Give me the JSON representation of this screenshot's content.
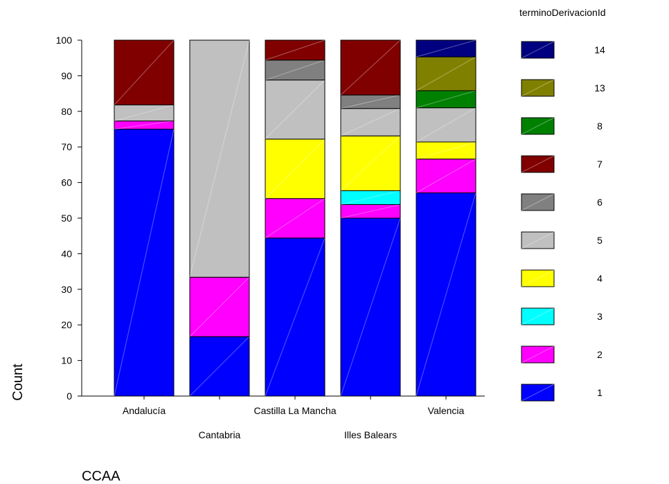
{
  "chart_data": {
    "type": "bar",
    "stacked": true,
    "title": "",
    "xlabel": "CCAA",
    "ylabel": "Count",
    "ylim": [
      0,
      100
    ],
    "yticks": [
      0,
      10,
      20,
      30,
      40,
      50,
      60,
      70,
      80,
      90,
      100
    ],
    "grid": false,
    "legend_title": "terminoDerivacionId",
    "legend_position": "right",
    "categories": [
      "Andalucía",
      "Cantabria",
      "Castilla La Mancha",
      "Illes Balears",
      "Valencia"
    ],
    "series": [
      {
        "name": "1",
        "color": "#0000ff",
        "values": [
          75,
          16.7,
          44.4,
          50,
          57.1
        ]
      },
      {
        "name": "2",
        "color": "#ff00ff",
        "values": [
          2.3,
          16.7,
          11.1,
          3.8,
          9.5
        ]
      },
      {
        "name": "3",
        "color": "#00ffff",
        "values": [
          0,
          0,
          0,
          3.9,
          0
        ]
      },
      {
        "name": "4",
        "color": "#ffff00",
        "values": [
          0,
          0,
          16.7,
          15.4,
          4.8
        ]
      },
      {
        "name": "5",
        "color": "#c0c0c0",
        "values": [
          4.5,
          66.6,
          16.6,
          7.7,
          9.6
        ]
      },
      {
        "name": "6",
        "color": "#808080",
        "values": [
          0,
          0,
          5.6,
          3.8,
          0
        ]
      },
      {
        "name": "7",
        "color": "#800000",
        "values": [
          18.2,
          0,
          5.6,
          15.4,
          0
        ]
      },
      {
        "name": "8",
        "color": "#008000",
        "values": [
          0,
          0,
          0,
          0,
          4.8
        ]
      },
      {
        "name": "13",
        "color": "#808000",
        "values": [
          0,
          0,
          0,
          0,
          9.5
        ]
      },
      {
        "name": "14",
        "color": "#000080",
        "values": [
          0,
          0,
          0,
          0,
          4.7
        ]
      }
    ]
  }
}
